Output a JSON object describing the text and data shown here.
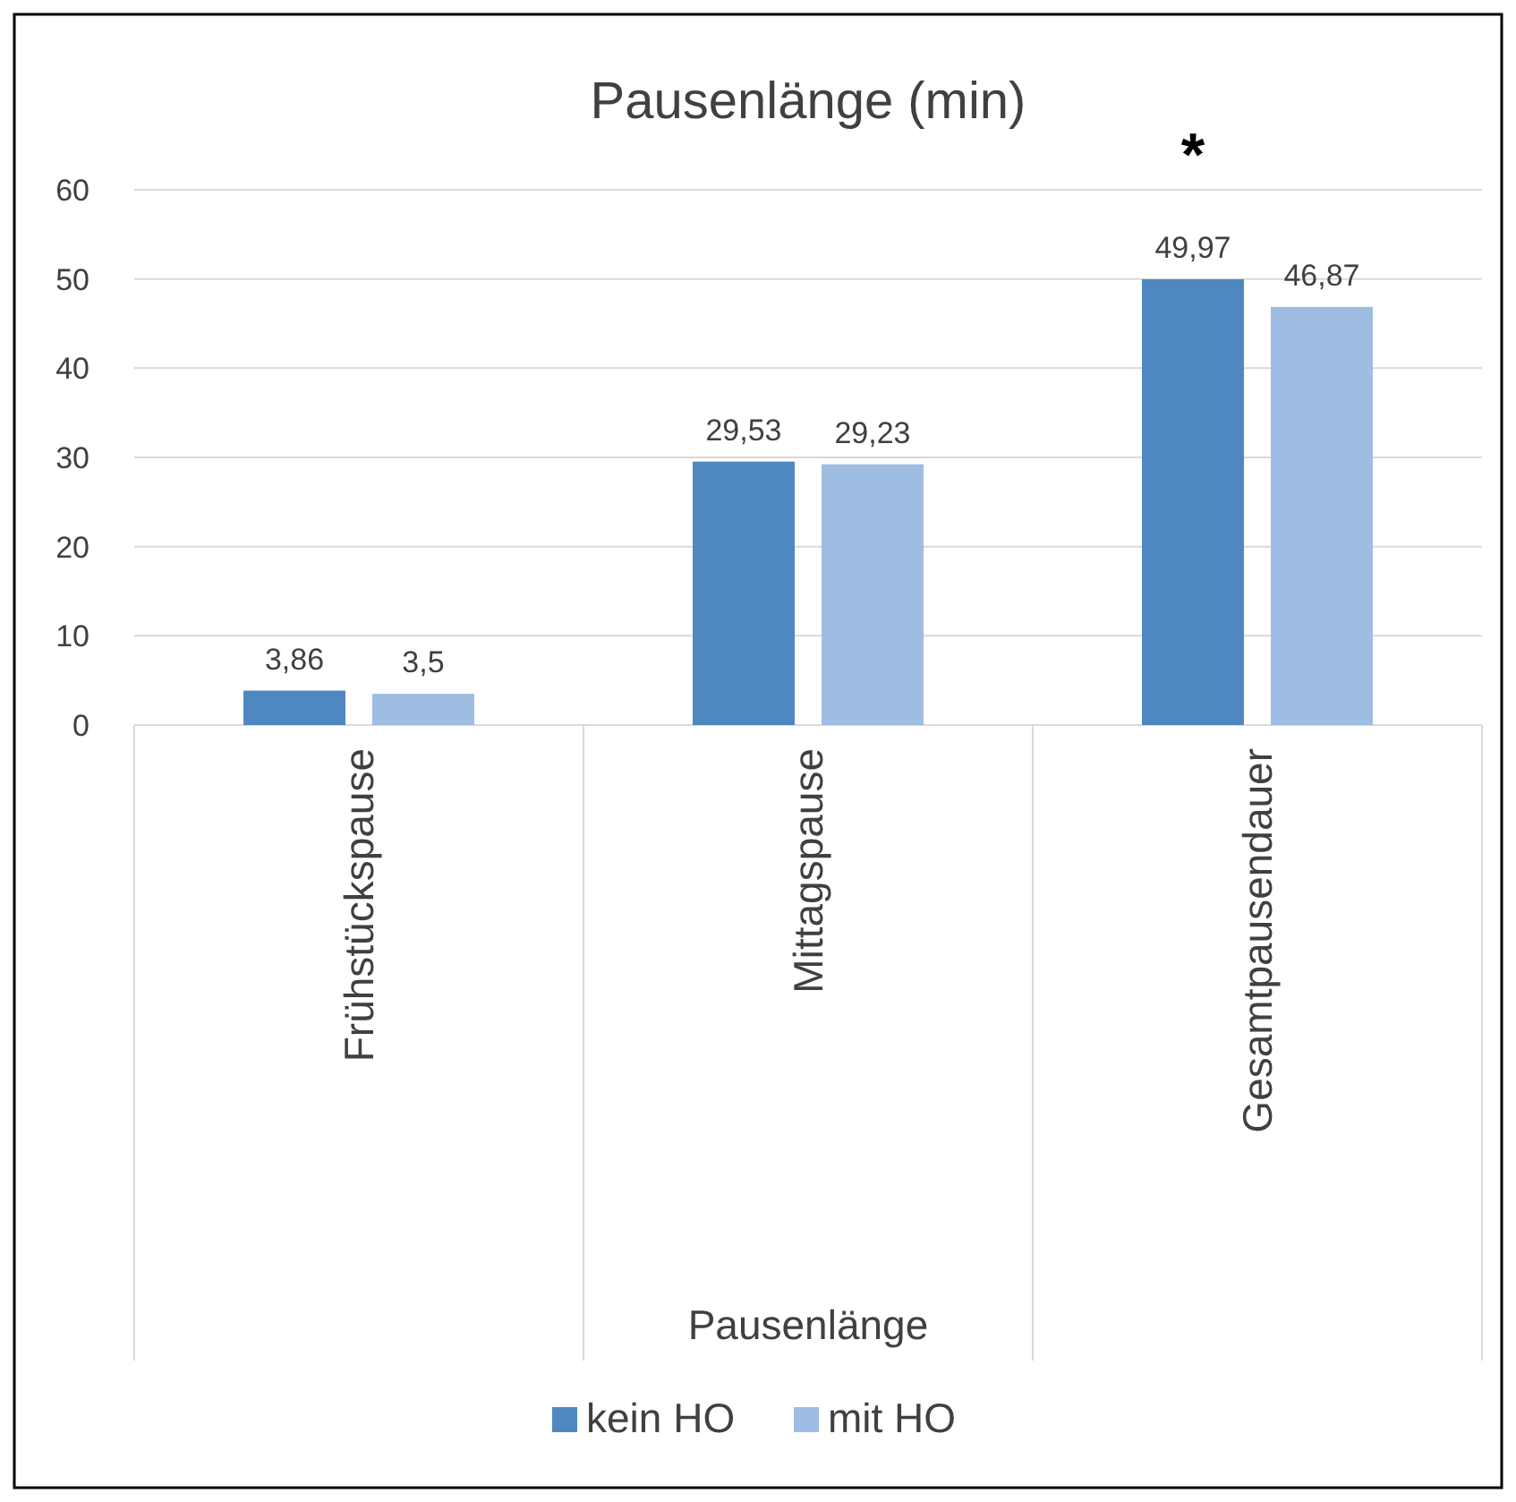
{
  "chart_data": {
    "type": "bar",
    "title": "Pausenlänge (min)",
    "xlabel": "Pausenlänge",
    "categories": [
      "Frühstückspause",
      "Mittagspause",
      "Gesamtpausendauer"
    ],
    "series": [
      {
        "name": "kein HO",
        "color": "#4f88c0",
        "values": [
          3.86,
          29.53,
          49.97
        ],
        "value_labels": [
          "3,86",
          "29,53",
          "49,97"
        ]
      },
      {
        "name": "mit HO",
        "color": "#9dbde2",
        "values": [
          3.5,
          29.23,
          46.87
        ],
        "value_labels": [
          "3,5",
          "29,23",
          "46,87"
        ]
      }
    ],
    "ylim": [
      0,
      60
    ],
    "yticks": [
      0,
      10,
      20,
      30,
      40,
      50,
      60
    ],
    "grid": "y",
    "legend": "bottom",
    "annotations": [
      "*"
    ]
  }
}
